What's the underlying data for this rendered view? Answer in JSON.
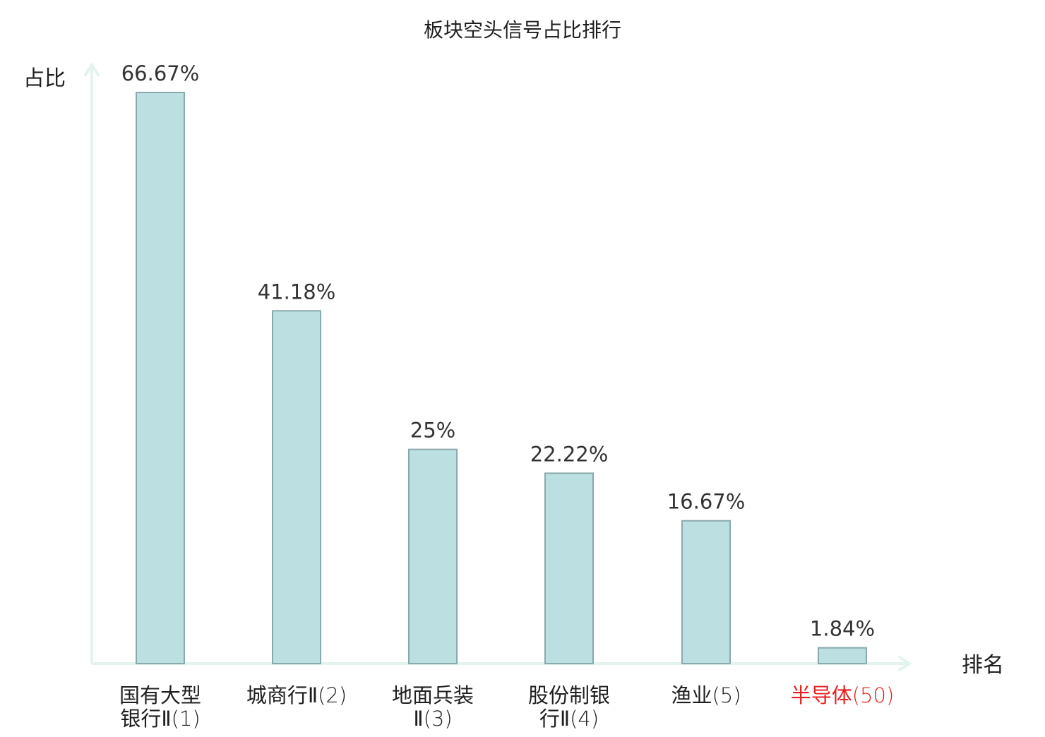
{
  "chart_data": {
    "type": "bar",
    "title": "板块空头信号占比排行",
    "ylabel": "占比",
    "xlabel": "排名",
    "ylim": [
      0,
      70
    ],
    "grid": false,
    "legend": "none",
    "categories": [
      {
        "lines": [
          "国有大型",
          "银行Ⅱ"
        ],
        "rank": "(1)",
        "highlight": false
      },
      {
        "lines": [
          "城商行Ⅱ"
        ],
        "rank": "(2)",
        "highlight": false
      },
      {
        "lines": [
          "地面兵装",
          "Ⅱ"
        ],
        "rank": "(3)",
        "highlight": false
      },
      {
        "lines": [
          "股份制银",
          "行Ⅱ"
        ],
        "rank": "(4)",
        "highlight": false
      },
      {
        "lines": [
          "渔业"
        ],
        "rank": "(5)",
        "highlight": false
      },
      {
        "lines": [
          "半导体"
        ],
        "rank": "(50)",
        "highlight": true
      }
    ],
    "values": [
      66.67,
      41.18,
      25,
      22.22,
      16.67,
      1.84
    ],
    "value_labels": [
      "66.67%",
      "41.18%",
      "25%",
      "22.22%",
      "16.67%",
      "1.84%"
    ],
    "colors": {
      "bar_fill": "#bce0e2",
      "bar_stroke": "#8aa9ab",
      "axis": "#e3f3f0",
      "text": "#333333",
      "highlight": "#e81e1e"
    }
  }
}
